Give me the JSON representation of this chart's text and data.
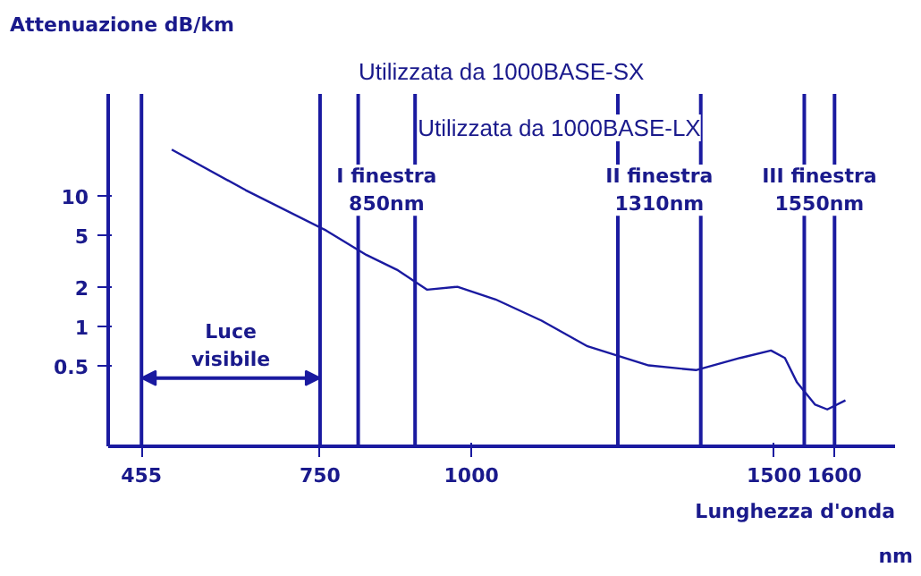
{
  "chart_data": {
    "type": "line",
    "ylabel": "Attenuazione dB/km",
    "xlabel": "Lunghezza d'onda",
    "log": "y",
    "grid": false,
    "marker": "none",
    "line_style": "solid",
    "xlim": [
      400,
      1700
    ],
    "ylim": [
      0.12,
      60
    ],
    "xticks": [
      455,
      750,
      1000,
      1500,
      1600
    ],
    "yticks": [
      0.5,
      1,
      2,
      5,
      10
    ],
    "series": [
      {
        "color": "#1a1aa0",
        "x": [
          505,
          627,
          760,
          827,
          877,
          927,
          977,
          1040,
          1116,
          1192,
          1293,
          1371,
          1444,
          1495,
          1518,
          1538,
          1568,
          1588,
          1618
        ],
        "values": [
          22.5,
          11,
          5.4,
          3.5,
          2.7,
          1.9,
          2.0,
          1.6,
          1.1,
          0.7,
          0.5,
          0.46,
          0.57,
          0.65,
          0.57,
          0.37,
          0.25,
          0.23,
          0.27
        ]
      }
    ],
    "ref_lines": [
      {
        "axis": "x",
        "value": 455,
        "label": null
      },
      {
        "axis": "x",
        "value": 750,
        "label": null
      },
      {
        "axis": "x",
        "value": 813,
        "label": null
      },
      {
        "axis": "x",
        "value": 907,
        "label": null
      },
      {
        "axis": "x",
        "value": 1242,
        "label": null
      },
      {
        "axis": "x",
        "value": 1379,
        "label": null
      },
      {
        "axis": "x",
        "value": 1550,
        "label": null
      },
      {
        "axis": "x",
        "value": 1600,
        "label": null
      }
    ],
    "annotations": [
      "I finestra\n850nm",
      "II finestra\n1310nm",
      "III finestra\n1550nm",
      "Luce\nvisibile",
      "Utilizzata da 1000BASE-SX",
      "Utilizzata da 1000BASE-LX",
      "nm"
    ]
  }
}
